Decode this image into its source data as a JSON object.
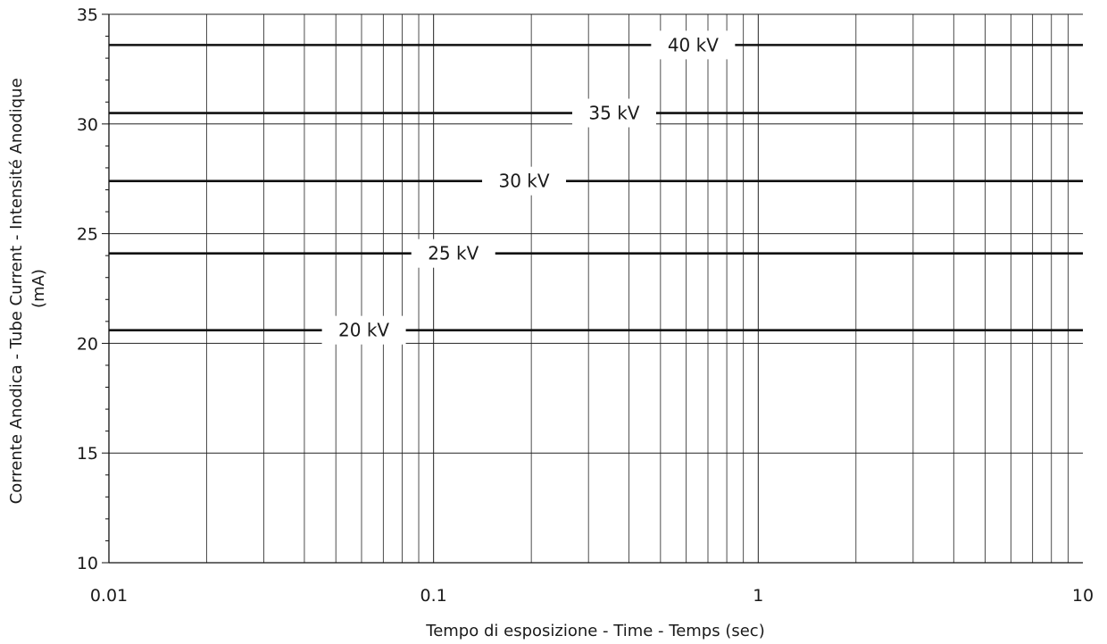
{
  "chart_data": {
    "type": "line",
    "title": "",
    "xlabel": "Tempo di esposizione - Time - Temps  (sec)",
    "ylabel_lines": [
      "Corrente Anodica - Tube Current - Intensité Anodique",
      "(mA)"
    ],
    "x_scale": "log",
    "xlim": [
      0.01,
      10
    ],
    "ylim": [
      10,
      35
    ],
    "x_ticks": [
      "0.01",
      "0.1",
      "1",
      "10"
    ],
    "y_ticks": [
      10,
      15,
      20,
      25,
      30,
      35
    ],
    "grid": true,
    "series": [
      {
        "name": "40 kV",
        "x": [
          0.01,
          10
        ],
        "y": [
          33.6,
          33.6
        ],
        "label_x": 0.63
      },
      {
        "name": "35 kV",
        "x": [
          0.01,
          10
        ],
        "y": [
          30.5,
          30.5
        ],
        "label_x": 0.36
      },
      {
        "name": "30 kV",
        "x": [
          0.01,
          10
        ],
        "y": [
          27.4,
          27.4
        ],
        "label_x": 0.19
      },
      {
        "name": "25 kV",
        "x": [
          0.01,
          10
        ],
        "y": [
          24.1,
          24.1
        ],
        "label_x": 0.115
      },
      {
        "name": "20 kV",
        "x": [
          0.01,
          10
        ],
        "y": [
          20.6,
          20.6
        ],
        "label_x": 0.061
      }
    ]
  }
}
